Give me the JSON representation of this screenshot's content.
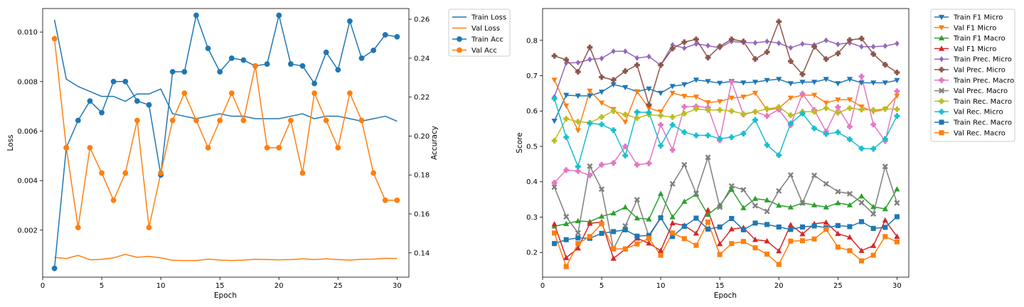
{
  "chart_data": [
    {
      "type": "line",
      "x": [
        1,
        2,
        3,
        4,
        5,
        6,
        7,
        8,
        9,
        10,
        11,
        12,
        13,
        14,
        15,
        16,
        17,
        18,
        19,
        20,
        21,
        22,
        23,
        24,
        25,
        26,
        27,
        28,
        29,
        30
      ],
      "xlabel": "Epoch",
      "ylabel": "Loss",
      "y2label": "Accuracy",
      "xlim": [
        0,
        31
      ],
      "ylim": [
        0.0001,
        0.01095
      ],
      "y2lim": [
        0.1275,
        0.2655
      ],
      "xticks": [
        "0",
        "5",
        "10",
        "15",
        "20",
        "25",
        "30"
      ],
      "yticks": [
        "0.002",
        "0.004",
        "0.006",
        "0.008",
        "0.010"
      ],
      "y2ticks": [
        "0.14",
        "0.16",
        "0.18",
        "0.20",
        "0.22",
        "0.24",
        "0.26"
      ],
      "grid": false,
      "legend_placement": "outside-right",
      "series": [
        {
          "name": "Train Loss",
          "axis": "left",
          "color": "#1f77b4",
          "marker": "none",
          "values": [
            0.0105,
            0.0081,
            0.0078,
            0.0076,
            0.0074,
            0.0074,
            0.0072,
            0.0075,
            0.0075,
            0.0077,
            0.0067,
            0.0066,
            0.0065,
            0.0066,
            0.0067,
            0.0066,
            0.0066,
            0.0065,
            0.0065,
            0.0065,
            0.0066,
            0.0067,
            0.0065,
            0.0066,
            0.0066,
            0.0065,
            0.0064,
            0.0065,
            0.0066,
            0.0064
          ]
        },
        {
          "name": "Val Loss",
          "axis": "left",
          "color": "#ff7f0e",
          "marker": "none",
          "values": [
            0.0009,
            0.00085,
            0.00098,
            0.0008,
            0.00082,
            0.00088,
            0.00102,
            0.0009,
            0.00094,
            0.00088,
            0.00078,
            0.00077,
            0.00077,
            0.00083,
            0.00079,
            0.00077,
            0.00079,
            0.00082,
            0.00081,
            0.0008,
            0.00081,
            0.00084,
            0.00081,
            0.00084,
            0.00081,
            0.00079,
            0.00082,
            0.00083,
            0.00086,
            0.00085
          ]
        },
        {
          "name": "Train Acc",
          "axis": "right",
          "color": "#1f77b4",
          "marker": "o",
          "values": [
            0.132,
            0.194,
            0.208,
            0.218,
            0.212,
            0.228,
            0.228,
            0.218,
            0.216,
            0.18,
            0.233,
            0.233,
            0.262,
            0.245,
            0.233,
            0.24,
            0.239,
            0.236,
            0.237,
            0.262,
            0.237,
            0.236,
            0.227,
            0.243,
            0.234,
            0.259,
            0.24,
            0.244,
            0.252,
            0.251
          ]
        },
        {
          "name": "Val Acc",
          "axis": "right",
          "color": "#ff7f0e",
          "marker": "o",
          "values": [
            0.25,
            0.194,
            0.153,
            0.194,
            0.181,
            0.167,
            0.181,
            0.208,
            0.153,
            0.181,
            0.208,
            0.222,
            0.208,
            0.194,
            0.208,
            0.222,
            0.208,
            0.236,
            0.194,
            0.194,
            0.208,
            0.181,
            0.222,
            0.208,
            0.194,
            0.222,
            0.208,
            0.181,
            0.167,
            0.167
          ]
        }
      ]
    },
    {
      "type": "line",
      "x": [
        1,
        2,
        3,
        4,
        5,
        6,
        7,
        8,
        9,
        10,
        11,
        12,
        13,
        14,
        15,
        16,
        17,
        18,
        19,
        20,
        21,
        22,
        23,
        24,
        25,
        26,
        27,
        28,
        29,
        30
      ],
      "xlabel": "Epoch",
      "ylabel": "Score",
      "xlim": [
        0,
        31
      ],
      "ylim": [
        0.13,
        0.89
      ],
      "xticks": [
        "0",
        "5",
        "10",
        "15",
        "20",
        "25",
        "30"
      ],
      "yticks": [
        "0.2",
        "0.3",
        "0.4",
        "0.5",
        "0.6",
        "0.7",
        "0.8"
      ],
      "grid": false,
      "legend_placement": "outside-right",
      "series": [
        {
          "name": "Train F1 Micro",
          "color": "#1f77b4",
          "marker": "v",
          "values": [
            0.572,
            0.645,
            0.643,
            0.643,
            0.654,
            0.675,
            0.667,
            0.655,
            0.663,
            0.651,
            0.67,
            0.675,
            0.688,
            0.684,
            0.679,
            0.684,
            0.68,
            0.682,
            0.687,
            0.69,
            0.678,
            0.682,
            0.682,
            0.69,
            0.678,
            0.69,
            0.68,
            0.68,
            0.68,
            0.687
          ]
        },
        {
          "name": "Val F1 Micro",
          "color": "#ff7f0e",
          "marker": "v",
          "values": [
            0.688,
            0.615,
            0.545,
            0.657,
            0.623,
            0.605,
            0.569,
            0.655,
            0.608,
            0.598,
            0.651,
            0.642,
            0.64,
            0.624,
            0.627,
            0.637,
            0.64,
            0.651,
            0.603,
            0.608,
            0.637,
            0.645,
            0.645,
            0.623,
            0.632,
            0.632,
            0.612,
            0.598,
            0.605,
            0.643
          ]
        },
        {
          "name": "Train F1 Macro",
          "color": "#2ca02c",
          "marker": "^",
          "values": [
            0.274,
            0.281,
            0.289,
            0.287,
            0.302,
            0.311,
            0.328,
            0.297,
            0.294,
            0.366,
            0.3,
            0.344,
            0.364,
            0.307,
            0.333,
            0.378,
            0.326,
            0.352,
            0.348,
            0.333,
            0.328,
            0.34,
            0.334,
            0.328,
            0.34,
            0.334,
            0.359,
            0.329,
            0.323,
            0.379
          ]
        },
        {
          "name": "Val F1 Micro",
          "color": "#d62728",
          "marker": "^",
          "values": [
            0.28,
            0.185,
            0.212,
            0.282,
            0.286,
            0.183,
            0.209,
            0.24,
            0.226,
            0.205,
            0.283,
            0.276,
            0.254,
            0.32,
            0.224,
            0.266,
            0.27,
            0.236,
            0.232,
            0.204,
            0.278,
            0.252,
            0.281,
            0.285,
            0.253,
            0.243,
            0.205,
            0.219,
            0.291,
            0.245
          ]
        },
        {
          "name": "Train Prec. Micro",
          "color": "#9467bd",
          "marker": "D",
          "values": [
            0.64,
            0.736,
            0.737,
            0.746,
            0.749,
            0.769,
            0.769,
            0.75,
            0.754,
            0.73,
            0.787,
            0.778,
            0.79,
            0.785,
            0.779,
            0.797,
            0.794,
            0.793,
            0.797,
            0.792,
            0.779,
            0.79,
            0.787,
            0.8,
            0.789,
            0.793,
            0.782,
            0.782,
            0.784,
            0.791
          ]
        },
        {
          "name": "Val Prec. Micro",
          "color": "#8c564b",
          "marker": "P",
          "values": [
            0.756,
            0.745,
            0.711,
            0.78,
            0.696,
            0.688,
            0.713,
            0.73,
            0.618,
            0.73,
            0.777,
            0.795,
            0.803,
            0.751,
            0.783,
            0.803,
            0.797,
            0.747,
            0.767,
            0.853,
            0.741,
            0.704,
            0.782,
            0.747,
            0.763,
            0.801,
            0.805,
            0.761,
            0.731,
            0.709
          ]
        },
        {
          "name": "Train Prec. Macro",
          "color": "#e377c2",
          "marker": "P",
          "values": [
            0.397,
            0.433,
            0.43,
            0.418,
            0.448,
            0.453,
            0.5,
            0.448,
            0.452,
            0.561,
            0.49,
            0.612,
            0.613,
            0.61,
            0.517,
            0.683,
            0.59,
            0.598,
            0.586,
            0.604,
            0.56,
            0.649,
            0.603,
            0.542,
            0.611,
            0.556,
            0.698,
            0.562,
            0.515,
            0.656
          ]
        },
        {
          "name": "Val Prec. Macro",
          "color": "#7f7f7f",
          "marker": "X",
          "values": [
            0.385,
            0.301,
            0.255,
            0.444,
            0.379,
            0.21,
            0.275,
            0.349,
            0.245,
            0.297,
            0.394,
            0.448,
            0.367,
            0.469,
            0.328,
            0.388,
            0.377,
            0.332,
            0.316,
            0.374,
            0.419,
            0.34,
            0.418,
            0.394,
            0.372,
            0.366,
            0.341,
            0.309,
            0.443,
            0.34
          ]
        },
        {
          "name": "Train Rec. Macro",
          "color": "#bcbd22",
          "marker": "P",
          "values": [
            0.516,
            0.578,
            0.57,
            0.567,
            0.583,
            0.6,
            0.59,
            0.58,
            0.59,
            0.587,
            0.583,
            0.593,
            0.606,
            0.603,
            0.603,
            0.6,
            0.592,
            0.598,
            0.606,
            0.611,
            0.588,
            0.598,
            0.598,
            0.608,
            0.595,
            0.608,
            0.604,
            0.603,
            0.606,
            0.605
          ]
        },
        {
          "name": "Val Rec. Micro",
          "color": "#17becf",
          "marker": "P",
          "values": [
            0.635,
            0.526,
            0.443,
            0.565,
            0.562,
            0.546,
            0.474,
            0.597,
            0.596,
            0.502,
            0.561,
            0.54,
            0.531,
            0.531,
            0.522,
            0.526,
            0.536,
            0.575,
            0.504,
            0.475,
            0.565,
            0.593,
            0.551,
            0.535,
            0.54,
            0.52,
            0.494,
            0.493,
            0.521,
            0.586
          ]
        },
        {
          "name": "Train Rec. Macro",
          "color": "#1f77b4",
          "marker": "s",
          "values": [
            0.225,
            0.236,
            0.241,
            0.24,
            0.254,
            0.259,
            0.264,
            0.246,
            0.248,
            0.298,
            0.245,
            0.274,
            0.297,
            0.266,
            0.272,
            0.296,
            0.264,
            0.283,
            0.279,
            0.272,
            0.265,
            0.272,
            0.275,
            0.27,
            0.276,
            0.273,
            0.287,
            0.268,
            0.271,
            0.301
          ]
        },
        {
          "name": "Val Rec. Macro",
          "color": "#ff7f0e",
          "marker": "s",
          "values": [
            0.255,
            0.16,
            0.225,
            0.245,
            0.281,
            0.21,
            0.21,
            0.224,
            0.24,
            0.192,
            0.255,
            0.239,
            0.22,
            0.286,
            0.194,
            0.225,
            0.231,
            0.213,
            0.195,
            0.166,
            0.232,
            0.233,
            0.238,
            0.265,
            0.215,
            0.205,
            0.176,
            0.192,
            0.245,
            0.23
          ]
        }
      ]
    }
  ]
}
